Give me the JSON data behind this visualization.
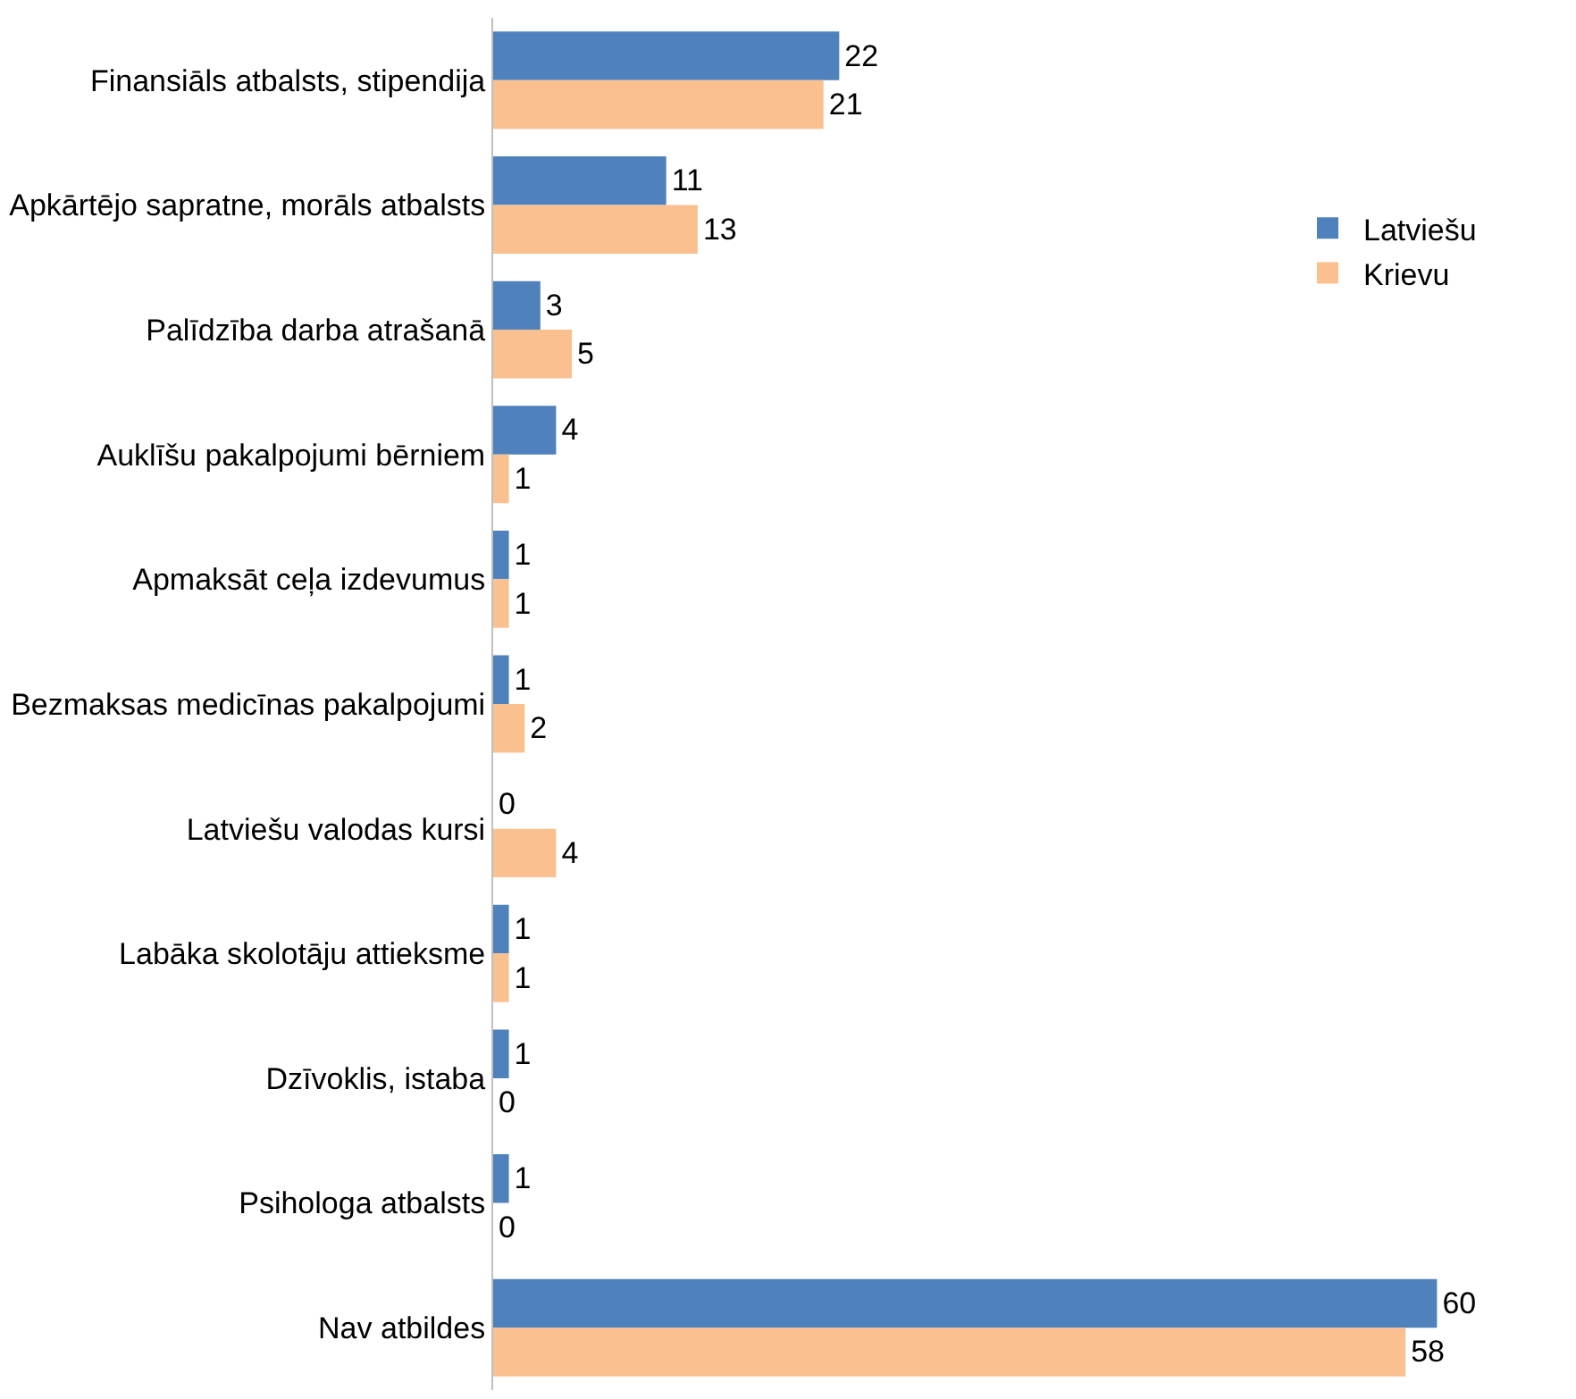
{
  "chart_data": {
    "type": "bar",
    "orientation": "horizontal",
    "data_labels": true,
    "legend": "right",
    "categories": [
      "Finansiāls atbalsts, stipendija",
      "Apkārtējo sapratne, morāls atbalsts",
      "Palīdzība darba atrašanā",
      "Auklīšu pakalpojumi bērniem",
      "Apmaksāt ceļa izdevumus",
      "Bezmaksas medicīnas pakalpojumi",
      "Latviešu valodas kursi",
      "Labāka skolotāju attieksme",
      "Dzīvoklis, istaba",
      "Psihologa atbalsts",
      "Nav atbildes"
    ],
    "series": [
      {
        "name": "Latviešu",
        "color": "#4f81bd",
        "values": [
          22,
          11,
          3,
          4,
          1,
          1,
          0,
          1,
          1,
          1,
          60
        ]
      },
      {
        "name": "Krievu",
        "color": "#fac090",
        "values": [
          21,
          13,
          5,
          1,
          1,
          2,
          4,
          1,
          0,
          0,
          58
        ]
      }
    ]
  }
}
